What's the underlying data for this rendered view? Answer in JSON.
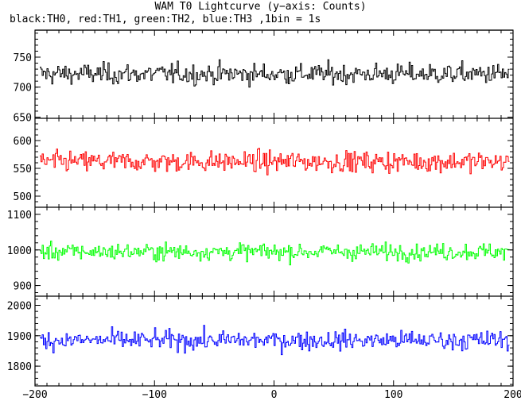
{
  "title": "WAM T0 Lightcurve (y−axis: Counts)",
  "subtitle": "black:TH0, red:TH1, green:TH2, blue:TH3 ,1bin = 1s",
  "chart_data": [
    {
      "type": "line",
      "series_name": "TH0",
      "color": "#000000",
      "xlim": [
        -200,
        200
      ],
      "ylim": [
        648,
        795
      ],
      "yticks": [
        650,
        700,
        750
      ],
      "ytick_labels": [
        "650",
        "700",
        "750"
      ],
      "mean": 722,
      "noise": 22,
      "x_start": -196,
      "x_end": 196,
      "step": 1
    },
    {
      "type": "line",
      "series_name": "TH1",
      "color": "#ff0000",
      "xlim": [
        -200,
        200
      ],
      "ylim": [
        480,
        640
      ],
      "yticks": [
        500,
        550,
        600
      ],
      "ytick_labels": [
        "500",
        "550",
        "600"
      ],
      "mean": 562,
      "noise": 24,
      "x_start": -196,
      "x_end": 196,
      "step": 1
    },
    {
      "type": "line",
      "series_name": "TH2",
      "color": "#00ff00",
      "xlim": [
        -200,
        200
      ],
      "ylim": [
        870,
        1120
      ],
      "yticks": [
        900,
        1000,
        1100
      ],
      "ytick_labels": [
        "900",
        "1000",
        "1100"
      ],
      "mean": 995,
      "noise": 30,
      "x_start": -196,
      "x_end": 196,
      "step": 1
    },
    {
      "type": "line",
      "series_name": "TH3",
      "color": "#0000ff",
      "xlim": [
        -200,
        200
      ],
      "ylim": [
        1735,
        2030
      ],
      "yticks": [
        1800,
        1900,
        2000
      ],
      "ytick_labels": [
        "1800",
        "1900",
        "2000"
      ],
      "mean": 1885,
      "noise": 40,
      "x_start": -196,
      "x_end": 196,
      "step": 1
    }
  ],
  "x_axis": {
    "ticks": [
      -200,
      -100,
      0,
      100,
      200
    ],
    "tick_labels": [
      "−200",
      "−100",
      "0",
      "100",
      "200"
    ]
  }
}
